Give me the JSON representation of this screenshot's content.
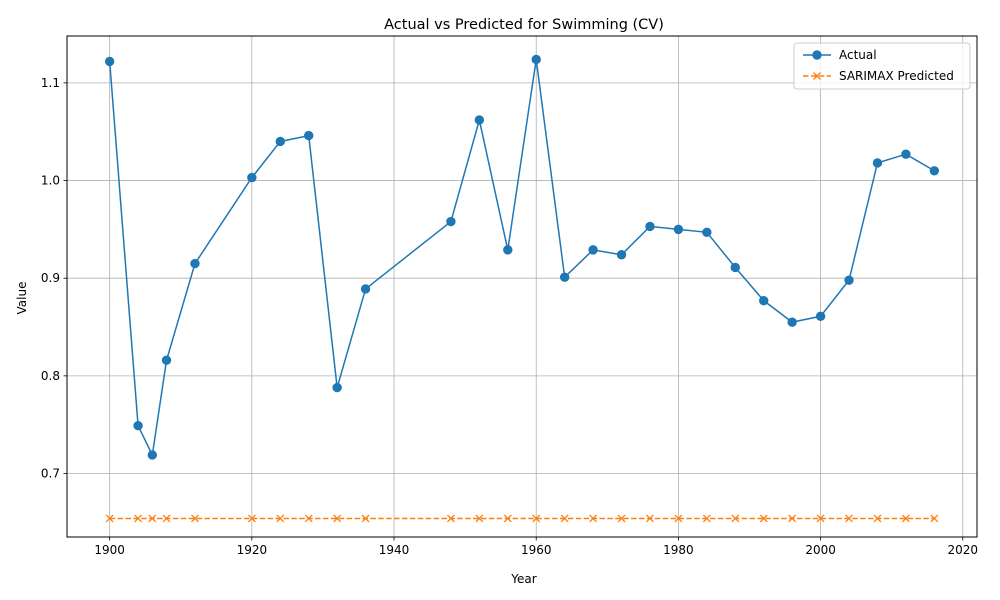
{
  "chart_data": {
    "type": "line",
    "title": "Actual vs Predicted for Swimming (CV)",
    "xlabel": "Year",
    "ylabel": "Value",
    "xlim": [
      1894,
      2022
    ],
    "ylim": [
      0.635,
      1.148
    ],
    "x_ticks": [
      1900,
      1920,
      1940,
      1960,
      1980,
      2000,
      2020
    ],
    "y_ticks": [
      0.7,
      0.8,
      0.9,
      1.0,
      1.1
    ],
    "x_tick_labels": [
      "1900",
      "1920",
      "1940",
      "1960",
      "1980",
      "2000",
      "2020"
    ],
    "y_tick_labels": [
      "0.7",
      "0.8",
      "0.9",
      "1.0",
      "1.1"
    ],
    "grid": true,
    "legend_position": "top-right",
    "x": [
      1900,
      1904,
      1906,
      1908,
      1912,
      1920,
      1924,
      1928,
      1932,
      1936,
      1948,
      1952,
      1956,
      1960,
      1964,
      1968,
      1972,
      1976,
      1980,
      1984,
      1988,
      1992,
      1996,
      2000,
      2004,
      2008,
      2012,
      2016
    ],
    "series": [
      {
        "name": "Actual",
        "color": "#1f77b4",
        "marker": "circle",
        "linestyle": "solid",
        "values": [
          1.122,
          0.749,
          0.719,
          0.816,
          0.915,
          1.003,
          1.04,
          1.046,
          0.788,
          0.889,
          0.958,
          1.062,
          0.929,
          1.124,
          0.901,
          0.929,
          0.924,
          0.953,
          0.95,
          0.947,
          0.911,
          0.877,
          0.855,
          0.861,
          0.898,
          1.018,
          1.027,
          1.01
        ]
      },
      {
        "name": "SARIMAX Predicted",
        "color": "#ff7f0e",
        "marker": "x",
        "linestyle": "dashed",
        "values": [
          0.654,
          0.654,
          0.654,
          0.654,
          0.654,
          0.654,
          0.654,
          0.654,
          0.654,
          0.654,
          0.654,
          0.654,
          0.654,
          0.654,
          0.654,
          0.654,
          0.654,
          0.654,
          0.654,
          0.654,
          0.654,
          0.654,
          0.654,
          0.654,
          0.654,
          0.654,
          0.654,
          0.654
        ]
      }
    ]
  }
}
